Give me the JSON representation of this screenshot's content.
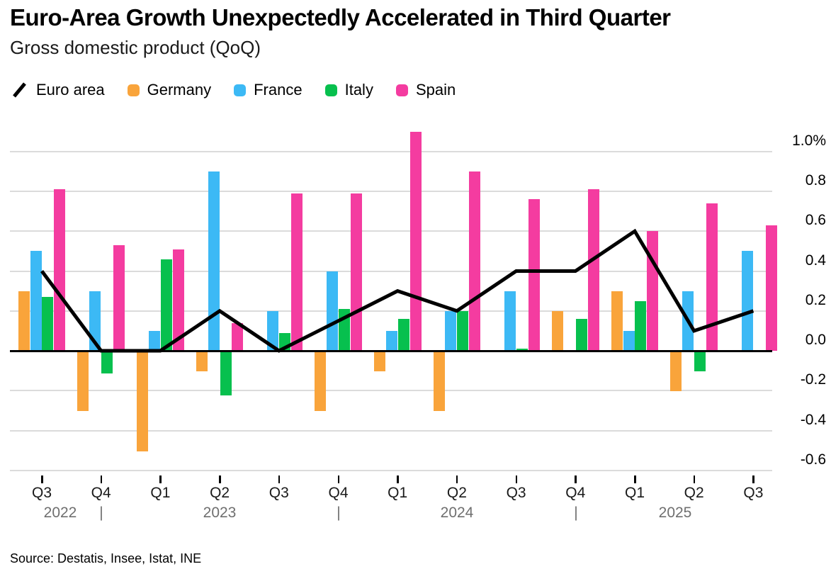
{
  "header": {
    "title": "Euro-Area Growth Unexpectedly Accelerated in Third Quarter",
    "subtitle": "Gross domestic product (QoQ)"
  },
  "legend": [
    {
      "label": "Euro area",
      "marker": "line-slash",
      "color": "#000000"
    },
    {
      "label": "Germany",
      "marker": "swatch",
      "color": "#f9a43b"
    },
    {
      "label": "France",
      "marker": "swatch",
      "color": "#3cb9f5"
    },
    {
      "label": "Italy",
      "marker": "swatch",
      "color": "#07c04e"
    },
    {
      "label": "Spain",
      "marker": "swatch",
      "color": "#f43ca0"
    }
  ],
  "chart_data": {
    "type": "bar+line",
    "categories": [
      "Q3 2022",
      "Q4 2022",
      "Q1 2023",
      "Q2 2023",
      "Q3 2023",
      "Q4 2023",
      "Q1 2024",
      "Q2 2024",
      "Q3 2024",
      "Q4 2024",
      "Q1 2025",
      "Q2 2025",
      "Q3 2025"
    ],
    "x_tick_labels": [
      "Q3",
      "Q4",
      "Q1",
      "Q2",
      "Q3",
      "Q4",
      "Q1",
      "Q2",
      "Q3",
      "Q4",
      "Q1",
      "Q2",
      "Q3"
    ],
    "year_row": {
      "years": [
        "2022",
        "2023",
        "2024",
        "2025"
      ],
      "dividers": [
        "|",
        "|",
        "|"
      ]
    },
    "series": [
      {
        "name": "Euro area",
        "type": "line",
        "color": "#000000",
        "values": [
          0.4,
          0.0,
          0.0,
          0.2,
          0.0,
          0.15,
          0.3,
          0.2,
          0.4,
          0.4,
          0.6,
          0.1,
          0.2
        ]
      },
      {
        "name": "Germany",
        "type": "bar",
        "color": "#f9a43b",
        "values": [
          0.3,
          -0.3,
          -0.5,
          -0.1,
          0.0,
          -0.3,
          -0.1,
          -0.3,
          0.0,
          0.2,
          0.3,
          -0.2,
          0.0
        ]
      },
      {
        "name": "France",
        "type": "bar",
        "color": "#3cb9f5",
        "values": [
          0.5,
          0.3,
          0.1,
          0.9,
          0.2,
          0.4,
          0.1,
          0.2,
          0.3,
          0.0,
          0.1,
          0.3,
          0.5
        ]
      },
      {
        "name": "Italy",
        "type": "bar",
        "color": "#07c04e",
        "values": [
          0.27,
          -0.11,
          0.46,
          -0.22,
          0.09,
          0.21,
          0.16,
          0.2,
          0.01,
          0.16,
          0.25,
          -0.1,
          0.0
        ]
      },
      {
        "name": "Spain",
        "type": "bar",
        "color": "#f43ca0",
        "values": [
          0.81,
          0.53,
          0.51,
          0.14,
          0.79,
          0.79,
          1.1,
          0.9,
          0.76,
          0.81,
          0.6,
          0.74,
          0.63
        ]
      }
    ],
    "y_axis": {
      "tick_labels": [
        "1.0%",
        "0.8",
        "0.6",
        "0.4",
        "0.2",
        "0.0",
        "-0.2",
        "-0.4",
        "-0.6"
      ],
      "tick_values": [
        1.0,
        0.8,
        0.6,
        0.4,
        0.2,
        0.0,
        -0.2,
        -0.4,
        -0.6
      ],
      "range": [
        -0.7,
        1.15
      ],
      "grid": true,
      "label_side": "right"
    },
    "legend_position": "top",
    "title": "Euro-Area Growth Unexpectedly Accelerated in Third Quarter",
    "xlabel": "",
    "ylabel": ""
  },
  "footer": {
    "source": "Source: Destatis, Insee, Istat, INE"
  },
  "colors": {
    "background": "#ffffff",
    "gridline": "#dbdbdb",
    "axis": "#000000",
    "year_text": "#6f6f6f",
    "euro_area_line": "#000000",
    "germany": "#f9a43b",
    "france": "#3cb9f5",
    "italy": "#07c04e",
    "spain": "#f43ca0"
  }
}
